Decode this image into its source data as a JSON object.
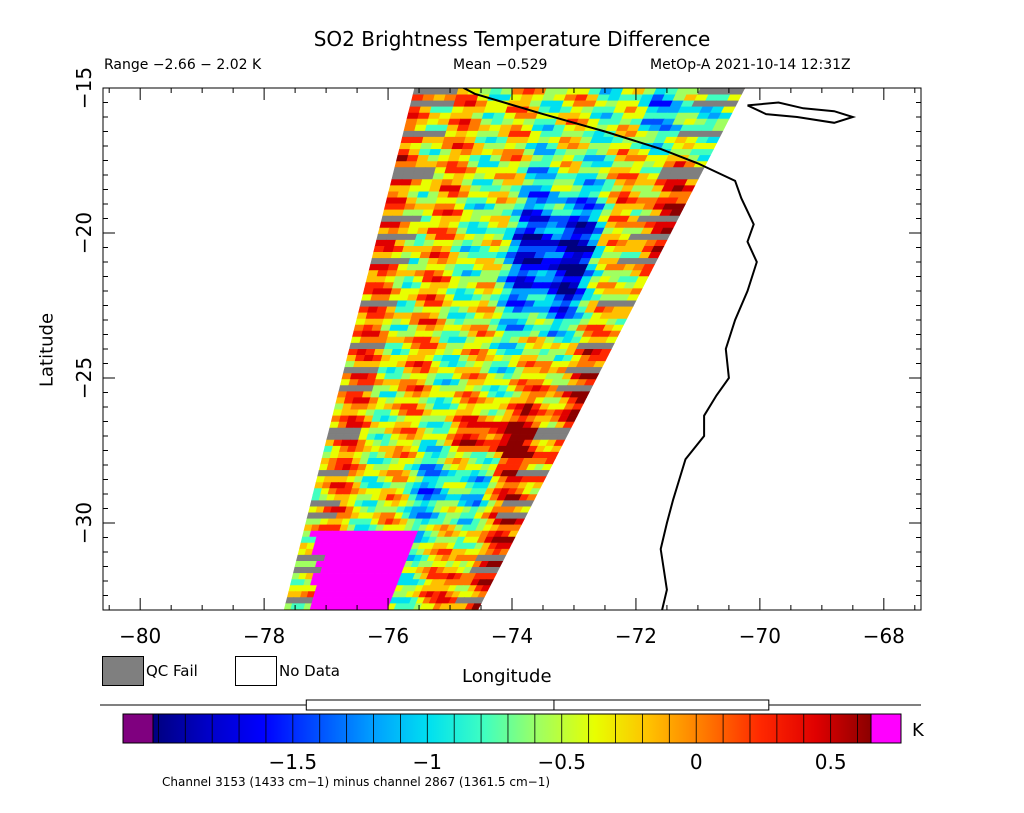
{
  "header": {
    "title": "SO2 Brightness Temperature Difference",
    "range": "Range −2.66 − 2.02 K",
    "mean": "Mean −0.529",
    "satellite": "MetOp-A 2021-10-14 12:31Z"
  },
  "axes": {
    "xlabel": "Longitude",
    "ylabel": "Latitude",
    "xlim": [
      -80.6,
      -67.4
    ],
    "ylim": [
      -33,
      -15
    ],
    "xticks": [
      -80,
      -78,
      -76,
      -74,
      -72,
      -70,
      -68
    ],
    "xtick_labels": [
      "−80",
      "−78",
      "−76",
      "−74",
      "−72",
      "−70",
      "−68"
    ],
    "yticks": [
      -15,
      -20,
      -25,
      -30
    ],
    "ytick_labels": [
      "−15",
      "−20",
      "−25",
      "−30"
    ]
  },
  "legend": {
    "qc_fail": "QC Fail",
    "no_data": "No Data",
    "qc_color": "#7f7f7f",
    "no_data_color": "#ffffff"
  },
  "colorbar": {
    "unit": "K",
    "vmin": -2.02,
    "vmax": 0.65,
    "ticks": [
      -1.5,
      -1,
      -0.5,
      0,
      0.5
    ],
    "tick_labels": [
      "−1.5",
      "−1",
      "−0.5",
      "0",
      "0.5"
    ],
    "under_color": "#7f007f",
    "over_color": "#ff00ff",
    "mean_marker": -0.529,
    "box": [
      -1.45,
      0.27
    ],
    "colors": [
      "#00007f",
      "#0000c8",
      "#0000ff",
      "#0050ff",
      "#00a0ff",
      "#00e0f0",
      "#40ffc0",
      "#a0ff60",
      "#e8ff00",
      "#ffc000",
      "#ff7800",
      "#ff2800",
      "#e00000",
      "#8b0000"
    ]
  },
  "footnote": "Channel 3153 (1433 cm−1) minus channel 2867 (1361.5 cm−1)",
  "map": {
    "swath": {
      "corners_lonlat": [
        [
          -75.5,
          -14.4
        ],
        [
          -70.1,
          -14.4
        ],
        [
          -74.6,
          -33.2
        ],
        [
          -77.7,
          -33.2
        ]
      ]
    },
    "coastline_color": "#000000"
  }
}
